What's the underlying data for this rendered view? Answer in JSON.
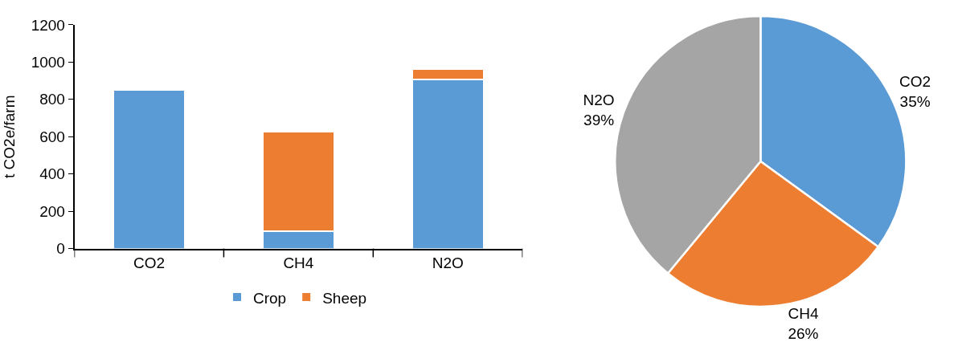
{
  "chart_data": [
    {
      "type": "bar",
      "stacked": true,
      "ylabel": "t CO2e/farm",
      "categories": [
        "CO2",
        "CH4",
        "N2O"
      ],
      "ylim": [
        0,
        1200
      ],
      "yticks": [
        0,
        200,
        400,
        600,
        800,
        1000,
        1200
      ],
      "legend": "bottom",
      "series": [
        {
          "name": "Crop",
          "color": "#5b9bd5",
          "values": [
            850,
            95,
            905
          ]
        },
        {
          "name": "Sheep",
          "color": "#ed7d31",
          "values": [
            null,
            530,
            57
          ]
        }
      ]
    },
    {
      "type": "pie",
      "categories": [
        "CO2",
        "CH4",
        "N2O"
      ],
      "values": [
        35,
        26,
        39
      ],
      "value_labels": [
        "35%",
        "26%",
        "39%"
      ],
      "colors": [
        "#5b9bd5",
        "#ed7d31",
        "#a5a5a5"
      ],
      "legend": false
    }
  ]
}
